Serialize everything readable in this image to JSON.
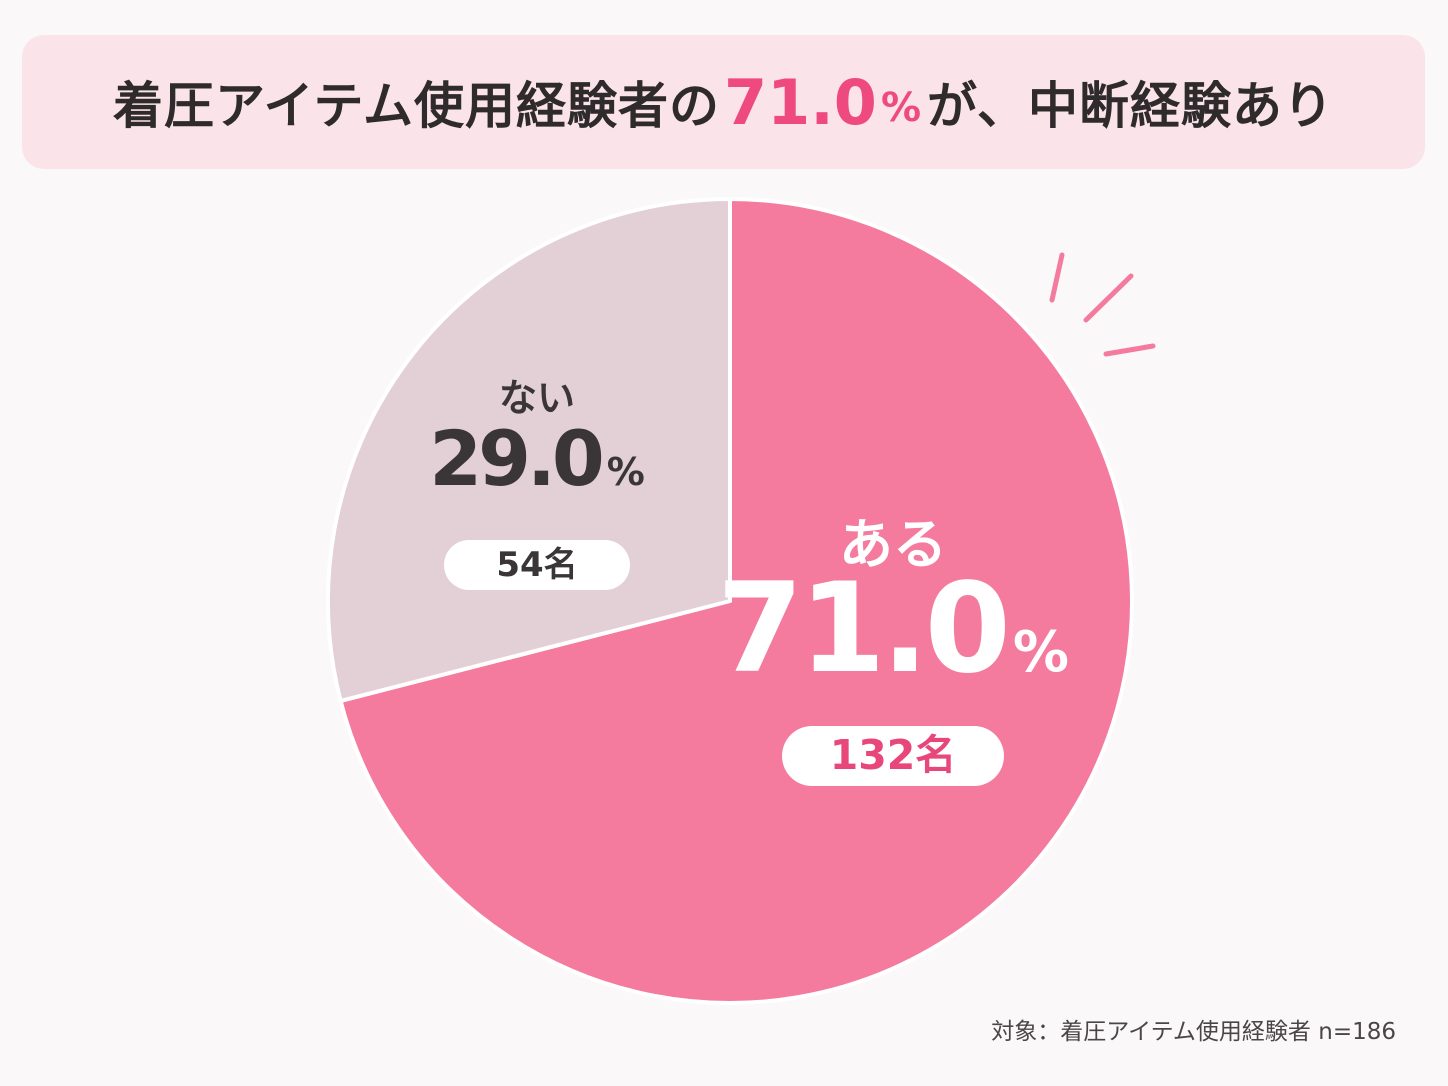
{
  "title": {
    "prefix": "着圧アイテム使用経験者の",
    "highlight_value": "71.0",
    "highlight_unit": "%",
    "suffix": "が、中断経験あり"
  },
  "chart_data": {
    "type": "pie",
    "total_n": 186,
    "slices": [
      {
        "label": "ある",
        "percent": 71.0,
        "percent_text": "71.0",
        "count_text": "132名",
        "color": "#f47a9e"
      },
      {
        "label": "ない",
        "percent": 29.0,
        "percent_text": "29.0",
        "count_text": "54名",
        "color": "#e3d0d6"
      }
    ],
    "percent_unit": "%",
    "start": "12 o'clock, clockwise"
  },
  "note": "対象：着圧アイテム使用経験者 n=186",
  "colors": {
    "accent": "#ee4a7f",
    "title_bg": "#fbe4e9",
    "count_text_yes": "#e8477c",
    "dark_text": "#3a3537"
  }
}
